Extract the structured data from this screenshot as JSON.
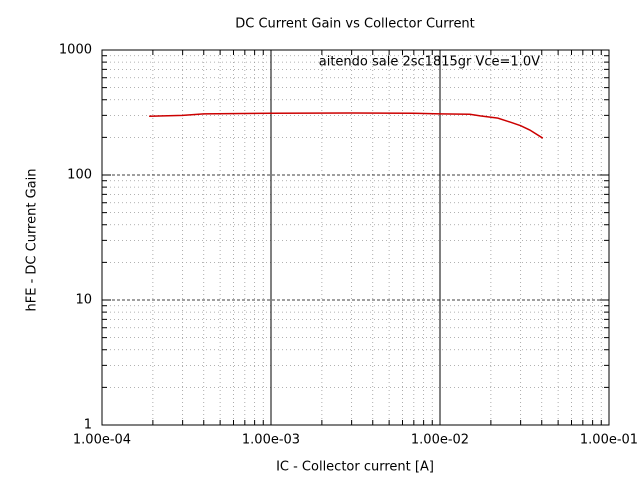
{
  "chart_data": {
    "type": "line",
    "title": "DC Current Gain vs Collector Current",
    "x_label": "IC - Collector current [A]",
    "y_label": "hFE - DC Current Gain",
    "x_log": true,
    "y_log": true,
    "grid": true,
    "legend": "top-right",
    "xlim": [
      0.0001,
      0.1
    ],
    "ylim": [
      1,
      1000
    ],
    "xticks": [
      {
        "value": 0.0001,
        "label": "1.00e-04"
      },
      {
        "value": 0.001,
        "label": "1.00e-03"
      },
      {
        "value": 0.01,
        "label": "1.00e-02"
      },
      {
        "value": 0.1,
        "label": "1.00e-01"
      }
    ],
    "yticks": [
      1,
      10,
      100,
      1000
    ],
    "x": [
      0.00019,
      0.0003,
      0.0004,
      0.001,
      0.003,
      0.007,
      0.01,
      0.015,
      0.0173,
      0.022,
      0.026,
      0.03,
      0.034,
      0.0406
    ],
    "series": [
      {
        "name": "aitendo sale 2sc1815gr Vce=1.0V",
        "color": "#cc0000",
        "values": [
          295,
          300,
          308,
          312,
          313,
          312,
          308,
          306,
          297,
          285,
          265,
          248,
          229,
          197
        ]
      }
    ]
  }
}
